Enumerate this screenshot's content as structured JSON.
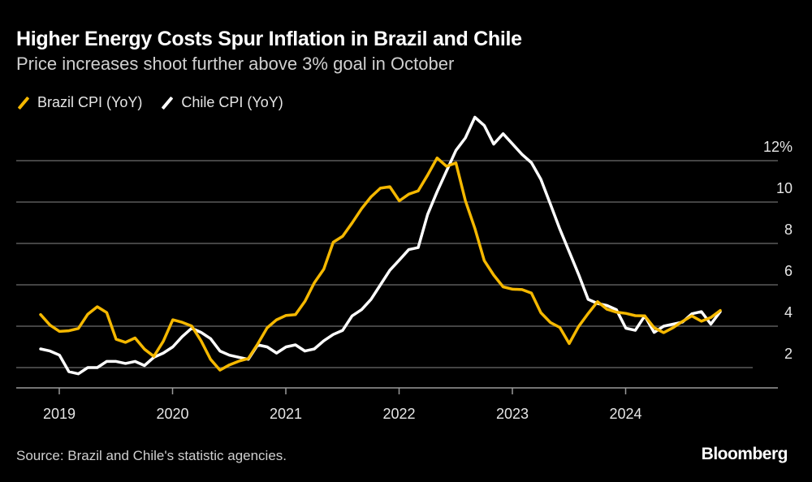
{
  "header": {
    "title": "Higher Energy Costs Spur Inflation in Brazil and Chile",
    "subtitle": "Price increases shoot further above 3% goal in October"
  },
  "footer": {
    "source": "Source: Brazil and Chile's statistic agencies.",
    "logo": "Bloomberg"
  },
  "chart_data": {
    "type": "line",
    "title": "Higher Energy Costs Spur Inflation in Brazil and Chile",
    "subtitle": "Price increases shoot further above 3% goal in October",
    "x_start": "2018-10",
    "x_end": "2024-10",
    "x_frequency": "monthly",
    "x_ticks": [
      "2019",
      "2020",
      "2021",
      "2022",
      "2023",
      "2024"
    ],
    "y_ticks": [
      2,
      4,
      6,
      8,
      10,
      12
    ],
    "y_tick_labels": [
      "2",
      "4",
      "6",
      "8",
      "10",
      "12%"
    ],
    "ylim": [
      1,
      14
    ],
    "grid": true,
    "legend_placement": "top-left",
    "series": [
      {
        "name": "Brazil CPI (YoY)",
        "color": "#f5b800",
        "values": [
          4.56,
          4.05,
          3.75,
          3.78,
          3.89,
          4.58,
          4.94,
          4.66,
          3.37,
          3.22,
          3.43,
          2.89,
          2.54,
          3.27,
          4.31,
          4.19,
          4.01,
          3.3,
          2.4,
          1.88,
          2.13,
          2.31,
          2.44,
          3.14,
          3.92,
          4.31,
          4.52,
          4.56,
          5.2,
          6.1,
          6.76,
          8.06,
          8.35,
          8.99,
          9.68,
          10.25,
          10.67,
          10.74,
          10.06,
          10.38,
          10.54,
          11.3,
          12.13,
          11.73,
          11.89,
          10.07,
          8.73,
          7.17,
          6.47,
          5.9,
          5.79,
          5.77,
          5.6,
          4.65,
          4.18,
          3.94,
          3.16,
          3.99,
          4.61,
          5.19,
          4.82,
          4.68,
          4.62,
          4.51,
          4.5,
          3.93,
          3.69,
          3.93,
          4.23,
          4.5,
          4.24,
          4.42,
          4.76
        ]
      },
      {
        "name": "Chile CPI (YoY)",
        "color": "#ffffff",
        "values": [
          2.9,
          2.8,
          2.6,
          1.8,
          1.7,
          2.0,
          2.0,
          2.3,
          2.3,
          2.2,
          2.3,
          2.1,
          2.5,
          2.7,
          3.0,
          3.5,
          3.9,
          3.7,
          3.4,
          2.8,
          2.6,
          2.5,
          2.4,
          3.1,
          3.0,
          2.7,
          3.0,
          3.1,
          2.8,
          2.9,
          3.3,
          3.6,
          3.8,
          4.5,
          4.8,
          5.3,
          6.0,
          6.7,
          7.2,
          7.7,
          7.8,
          9.4,
          10.5,
          11.5,
          12.5,
          13.1,
          14.1,
          13.7,
          12.8,
          13.3,
          12.8,
          12.3,
          11.9,
          11.1,
          9.9,
          8.7,
          7.6,
          6.5,
          5.3,
          5.1,
          5.0,
          4.8,
          3.9,
          3.8,
          4.5,
          3.7,
          4.0,
          4.1,
          4.2,
          4.6,
          4.7,
          4.1,
          4.7
        ]
      }
    ]
  }
}
